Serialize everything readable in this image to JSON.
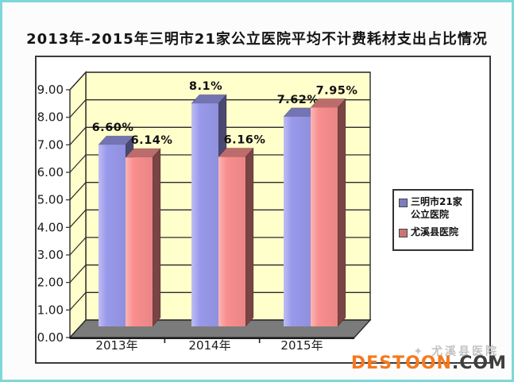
{
  "page": {
    "title": "2013年-2015年三明市21家公立医院平均不计费耗材支出占比情况"
  },
  "chart_data": {
    "type": "bar",
    "style": "3d-clustered-column",
    "title": "2013年-2015年三明市21家公立医院平均不计费耗材支出占比情况",
    "categories": [
      "2013年",
      "2014年",
      "2015年"
    ],
    "series": [
      {
        "name": "三明市21家公立医院",
        "values": [
          6.6,
          8.1,
          7.62
        ],
        "labels": [
          "6.60%",
          "8.1%",
          "7.62%"
        ],
        "color": "#9999EC"
      },
      {
        "name": "尤溪县医院",
        "values": [
          6.14,
          6.16,
          7.95
        ],
        "labels": [
          "6.14%",
          "6.16%",
          "7.95%"
        ],
        "color": "#F98E8E"
      }
    ],
    "xlabel": "",
    "ylabel": "",
    "ylim": [
      0,
      9
    ],
    "ytick_step": 1,
    "ytick_labels": [
      "0.00",
      "1.00",
      "2.00",
      "3.00",
      "4.00",
      "5.00",
      "6.00",
      "7.00",
      "8.00",
      "9.00"
    ],
    "grid": true,
    "legend_position": "right",
    "plot_bg_color": "#FFFFCC",
    "floor_color": "#7B7B7B",
    "line_color": "#2a2a2a"
  },
  "watermark": {
    "icon": "✦",
    "text": "尤溪县医院",
    "logo_main": "DESTOON",
    "logo_suffix": ".COM"
  }
}
